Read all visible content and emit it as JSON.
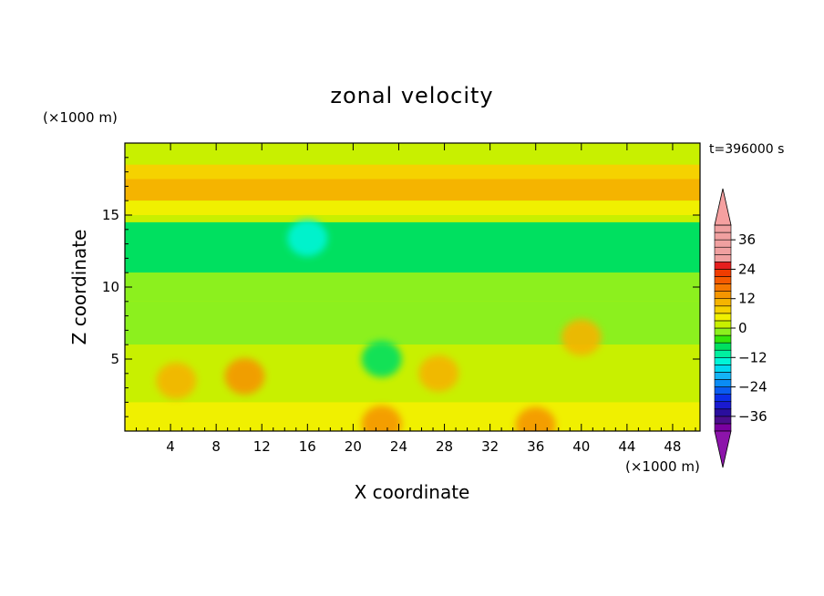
{
  "chart_data": {
    "type": "heatmap",
    "title": "zonal velocity",
    "xlabel": "X coordinate",
    "ylabel": "Z coordinate",
    "x_unit": "(×1000 m)",
    "z_unit": "(×1000 m)",
    "time_label": "t=396000 s",
    "xlim": [
      0,
      50.4
    ],
    "ylim": [
      0,
      20
    ],
    "x_ticks": [
      4,
      8,
      12,
      16,
      20,
      24,
      28,
      32,
      36,
      40,
      44,
      48
    ],
    "y_ticks": [
      5,
      10,
      15
    ],
    "colorbar": {
      "levels": [
        -42,
        -39,
        -36,
        -33,
        -30,
        -27,
        -24,
        -21,
        -18,
        -15,
        -12,
        -9,
        -6,
        -3,
        0,
        3,
        6,
        9,
        12,
        15,
        18,
        21,
        24,
        27,
        30,
        33,
        36,
        39,
        42
      ],
      "tick_values": [
        -36,
        -24,
        -12,
        0,
        12,
        24,
        36
      ],
      "tick_labels": [
        "−36",
        "−24",
        "−12",
        "0",
        "12",
        "24",
        "36"
      ],
      "colors": [
        "#7a00a0",
        "#4b0d8c",
        "#2a0e9e",
        "#1a1ad0",
        "#0b2ee8",
        "#0a5cf0",
        "#0a8cf5",
        "#14b4f5",
        "#00d8f0",
        "#00f5d8",
        "#00f0a0",
        "#00e060",
        "#33e60a",
        "#8cf01e",
        "#c8f000",
        "#f0f000",
        "#f5d200",
        "#f5b400",
        "#f59600",
        "#f57800",
        "#f55a00",
        "#f03c00",
        "#e61e1e",
        "#f0a0a0"
      ],
      "under_color": "#8c14aa",
      "over_color": "#f5a0a0"
    },
    "field_description_bands_u": [
      {
        "z_range": [
          18.5,
          19.8
        ],
        "u": 2
      },
      {
        "z_range": [
          17.5,
          18.5
        ],
        "u": 6
      },
      {
        "z_range": [
          16.0,
          17.5
        ],
        "u": 11
      },
      {
        "z_range": [
          15.0,
          16.0
        ],
        "u": 4
      },
      {
        "z_range": [
          14.5,
          15.0
        ],
        "u": 0
      },
      {
        "z_range": [
          11.0,
          14.5
        ],
        "u": -7
      },
      {
        "z_range": [
          9.0,
          11.0
        ],
        "u": -3
      },
      {
        "z_range": [
          6.0,
          9.0
        ],
        "u": -1
      },
      {
        "z_range": [
          2.0,
          6.0
        ],
        "u": 2
      },
      {
        "z_range": [
          0.0,
          2.0
        ],
        "u": 5
      }
    ],
    "features": [
      {
        "x": 10.5,
        "z": 3.8,
        "u": 14
      },
      {
        "x": 4.5,
        "z": 3.5,
        "u": 9
      },
      {
        "x": 22.5,
        "z": 5.0,
        "u": -9
      },
      {
        "x": 27.5,
        "z": 4.0,
        "u": 10
      },
      {
        "x": 40.0,
        "z": 6.5,
        "u": 9
      },
      {
        "x": 16.0,
        "z": 13.4,
        "u": -15
      },
      {
        "x": 22.5,
        "z": 0.5,
        "u": 14
      },
      {
        "x": 36.0,
        "z": 0.4,
        "u": 12
      }
    ]
  }
}
